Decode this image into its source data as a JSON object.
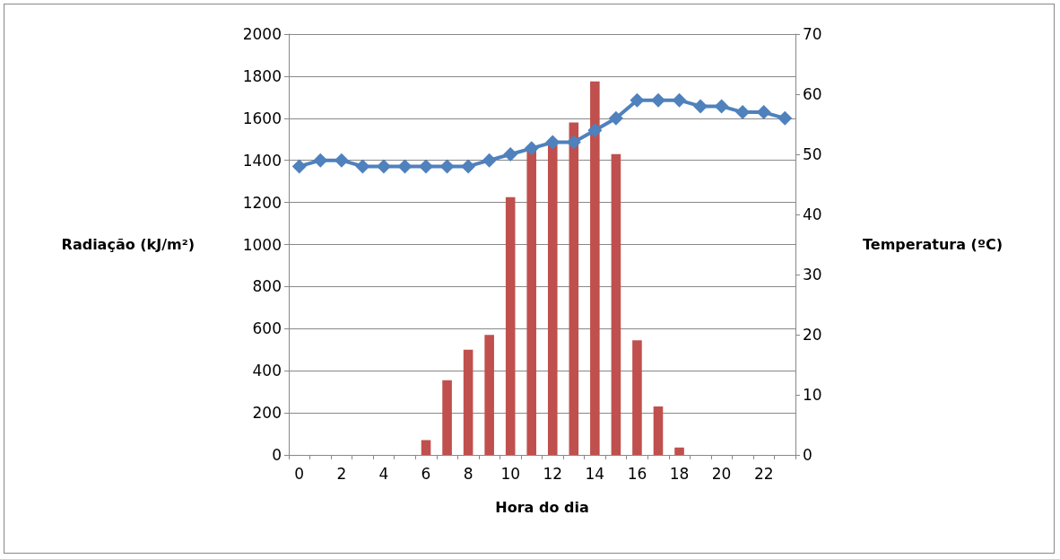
{
  "chart_data": {
    "type": "bar",
    "xlabel": "Hora do dia",
    "ylabel": "Radiação (kJ/m²)",
    "y2label": "Temperatura (ºC)",
    "categories": [
      "0",
      null,
      "2",
      null,
      "4",
      null,
      "6",
      null,
      "8",
      null,
      "10",
      null,
      "12",
      null,
      "14",
      null,
      "16",
      null,
      "18",
      null,
      "20",
      null,
      "22",
      null
    ],
    "series": [
      {
        "color": "#c0504d",
        "values": [
          0,
          0,
          0,
          0,
          0,
          0,
          70,
          355,
          500,
          570,
          1225,
          1450,
          1480,
          1580,
          1775,
          1430,
          545,
          230,
          35,
          0,
          0,
          0,
          0,
          0
        ]
      },
      {
        "type": "line",
        "axis": "y2",
        "color": "#4f81bd",
        "values": [
          48,
          49,
          49,
          48,
          48,
          48,
          48,
          48,
          48,
          49,
          50,
          51,
          52,
          52,
          54,
          56,
          59,
          59,
          59,
          58,
          58,
          57,
          57,
          56
        ]
      }
    ],
    "ylim": [
      0,
      2000
    ],
    "yticks": [
      0,
      200,
      400,
      600,
      800,
      1000,
      1200,
      1400,
      1600,
      1800,
      2000
    ],
    "y2lim": [
      0,
      70
    ],
    "y2ticks": [
      0,
      10,
      20,
      30,
      40,
      50,
      60,
      70
    ],
    "grid": "y",
    "marker": "diamond"
  }
}
